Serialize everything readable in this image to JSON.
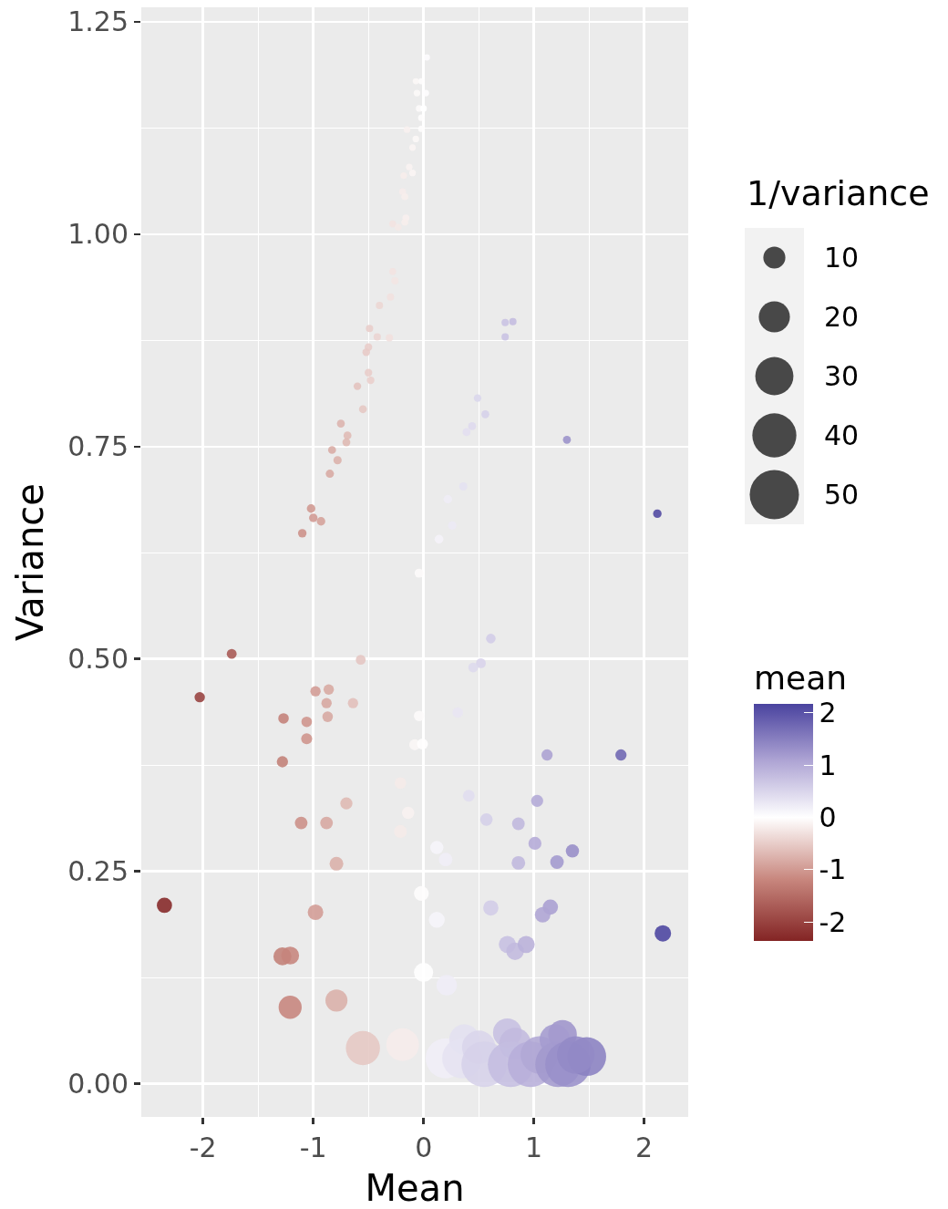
{
  "chart_data": {
    "type": "bubble",
    "xlabel": "Mean",
    "ylabel": "Variance",
    "legend_title": "1/variance",
    "clabel": "mean",
    "x": [
      0.03,
      -0.02,
      -0.07,
      -0.06,
      0.02,
      -0.04,
      0.0,
      -0.02,
      -0.15,
      -0.02,
      -0.07,
      -0.1,
      -0.13,
      -0.1,
      -0.18,
      -0.19,
      -0.17,
      -0.16,
      -0.17,
      -0.28,
      -0.23,
      -0.28,
      -0.26,
      -0.3,
      -0.4,
      -0.49,
      -0.42,
      -0.31,
      -0.5,
      -0.52,
      0.74,
      0.81,
      0.74,
      -0.5,
      -0.48,
      -0.6,
      -0.55,
      -0.75,
      -0.69,
      -0.7,
      -0.83,
      -0.78,
      -0.85,
      -1.02,
      -1.0,
      -0.93,
      -1.1,
      0.49,
      0.56,
      0.44,
      0.39,
      1.3,
      0.36,
      0.22,
      0.26,
      0.14,
      2.12,
      -0.04,
      0.61,
      -1.74,
      -2.03,
      -0.57,
      -0.98,
      -0.86,
      -0.88,
      -0.64,
      -1.27,
      -1.06,
      -0.87,
      -1.06,
      -1.28,
      0.52,
      0.45,
      0.31,
      -0.04,
      -0.08,
      -0.01,
      1.12,
      1.79,
      -0.21,
      -0.7,
      -0.14,
      -0.21,
      0.41,
      1.03,
      0.57,
      0.86,
      -1.11,
      -0.88,
      0.12,
      0.2,
      1.01,
      1.35,
      1.21,
      0.86,
      -0.79,
      -2.35,
      -0.98,
      -0.02,
      0.12,
      0.61,
      1.15,
      1.08,
      2.17,
      0.76,
      0.83,
      0.93,
      -1.28,
      -1.21,
      0.0,
      0.21,
      -1.21,
      -0.79,
      -0.55,
      -0.19,
      0.2,
      0.37,
      0.35,
      0.5,
      0.55,
      0.76,
      0.83,
      0.79,
      0.97,
      1.05,
      1.22,
      1.26,
      1.19,
      1.31,
      1.48,
      1.38
    ],
    "values": [
      1.208,
      1.18,
      1.18,
      1.166,
      1.166,
      1.148,
      1.148,
      1.137,
      1.123,
      1.124,
      1.112,
      1.102,
      1.079,
      1.072,
      1.069,
      1.05,
      1.044,
      1.019,
      1.014,
      1.012,
      1.008,
      0.956,
      0.945,
      0.926,
      0.916,
      0.889,
      0.879,
      0.878,
      0.867,
      0.861,
      0.896,
      0.897,
      0.879,
      0.837,
      0.828,
      0.821,
      0.794,
      0.777,
      0.763,
      0.755,
      0.746,
      0.734,
      0.718,
      0.677,
      0.666,
      0.662,
      0.648,
      0.807,
      0.788,
      0.774,
      0.767,
      0.758,
      0.703,
      0.688,
      0.657,
      0.641,
      0.671,
      0.601,
      0.524,
      0.506,
      0.455,
      0.499,
      0.462,
      0.464,
      0.448,
      0.448,
      0.43,
      0.426,
      0.432,
      0.406,
      0.379,
      0.495,
      0.49,
      0.437,
      0.433,
      0.399,
      0.4,
      0.387,
      0.387,
      0.354,
      0.33,
      0.319,
      0.297,
      0.339,
      0.333,
      0.311,
      0.306,
      0.307,
      0.307,
      0.278,
      0.264,
      0.283,
      0.274,
      0.261,
      0.26,
      0.259,
      0.21,
      0.202,
      0.224,
      0.193,
      0.207,
      0.208,
      0.199,
      0.177,
      0.164,
      0.156,
      0.164,
      0.15,
      0.151,
      0.131,
      0.116,
      0.09,
      0.098,
      0.042,
      0.046,
      0.03,
      0.052,
      0.03,
      0.043,
      0.023,
      0.06,
      0.047,
      0.023,
      0.023,
      0.034,
      0.023,
      0.058,
      0.052,
      0.023,
      0.032,
      0.034
    ],
    "sizes": [
      0.8,
      0.8,
      0.8,
      0.9,
      0.9,
      0.9,
      0.9,
      0.9,
      0.9,
      0.9,
      0.9,
      0.9,
      0.9,
      0.9,
      0.9,
      1.0,
      1.0,
      1.0,
      1.0,
      1.0,
      1.0,
      1.0,
      1.1,
      1.1,
      1.1,
      1.1,
      1.1,
      1.1,
      1.2,
      1.2,
      1.1,
      1.1,
      1.1,
      1.2,
      1.2,
      1.2,
      1.3,
      1.3,
      1.3,
      1.3,
      1.3,
      1.4,
      1.4,
      1.5,
      1.5,
      1.5,
      1.5,
      1.2,
      1.3,
      1.3,
      1.3,
      1.3,
      1.4,
      1.5,
      1.5,
      1.6,
      1.5,
      1.7,
      1.9,
      2.0,
      2.2,
      2.0,
      2.2,
      2.2,
      2.2,
      2.2,
      2.3,
      2.3,
      2.3,
      2.5,
      2.6,
      2.0,
      2.0,
      2.3,
      2.3,
      2.5,
      2.5,
      2.6,
      2.6,
      2.8,
      3.0,
      3.1,
      3.4,
      2.9,
      3.0,
      3.2,
      3.3,
      3.3,
      3.3,
      3.6,
      3.8,
      3.5,
      3.6,
      3.8,
      3.8,
      3.9,
      4.8,
      5.0,
      4.5,
      5.2,
      4.8,
      4.8,
      5.0,
      5.6,
      6.1,
      6.4,
      6.1,
      6.7,
      6.6,
      7.6,
      8.6,
      11,
      10,
      24,
      22,
      33,
      19,
      33,
      23,
      43,
      17,
      21,
      43,
      43,
      29,
      43,
      17,
      19,
      43,
      31,
      29
    ],
    "size_legend": [
      10,
      20,
      30,
      40,
      50
    ],
    "xlim": [
      -2.56,
      2.4
    ],
    "ylim": [
      -0.039,
      1.267
    ],
    "xticks": [
      -2,
      -1,
      0,
      1,
      2
    ],
    "yticks": [
      {
        "value": 0,
        "label": "0.00"
      },
      {
        "value": 0.25,
        "label": "0.25"
      },
      {
        "value": 0.5,
        "label": "0.50"
      },
      {
        "value": 0.75,
        "label": "0.75"
      },
      {
        "value": 1,
        "label": "1.00"
      },
      {
        "value": 1.25,
        "label": "1.25"
      }
    ],
    "clim": [
      -2.36,
      2.17
    ],
    "cticks": [
      -2,
      -1,
      0,
      1,
      2
    ],
    "grid": true,
    "marker": "circle"
  }
}
